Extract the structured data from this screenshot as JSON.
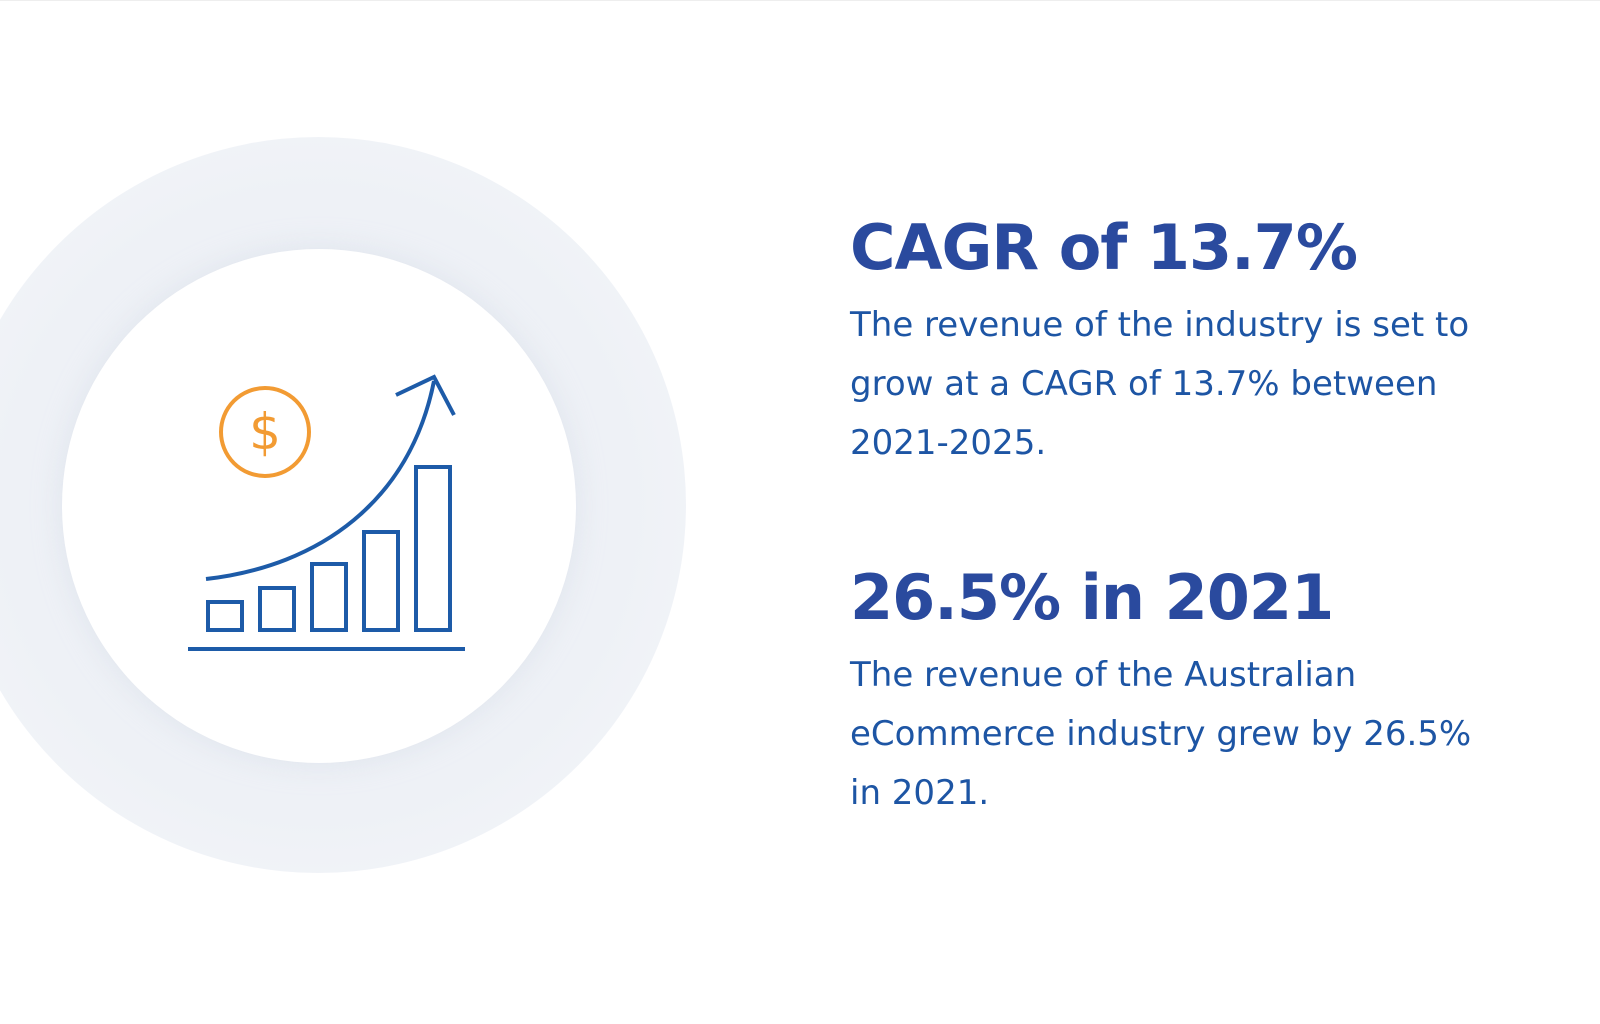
{
  "stats": [
    {
      "title": "CAGR of 13.7%",
      "text": "The revenue of the industry is set to grow at a CAGR of 13.7% between 2021-2025."
    },
    {
      "title": "26.5% in 2021",
      "text": "The revenue of the Australian eCommerce industry grew by 26.5% in 2021."
    }
  ]
}
